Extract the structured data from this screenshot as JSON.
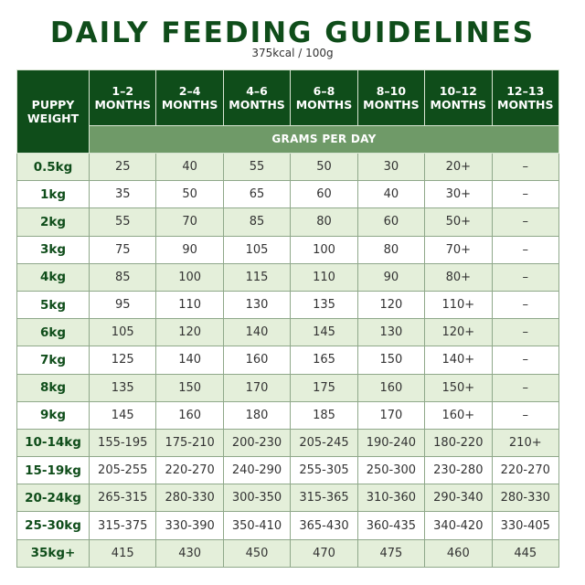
{
  "title": "DAILY FEEDING GUIDELINES",
  "subtitle": "375kcal / 100g",
  "colors": {
    "dark_green": "#0f4d1a",
    "mid_green": "#6f9a68",
    "light_row": "#e4efda"
  },
  "table": {
    "weight_header": [
      "PUPPY",
      "WEIGHT"
    ],
    "age_headers": [
      [
        "1–2",
        "MONTHS"
      ],
      [
        "2–4",
        "MONTHS"
      ],
      [
        "4–6",
        "MONTHS"
      ],
      [
        "6–8",
        "MONTHS"
      ],
      [
        "8–10",
        "MONTHS"
      ],
      [
        "10–12",
        "MONTHS"
      ],
      [
        "12–13",
        "MONTHS"
      ]
    ],
    "unit_header": "GRAMS PER DAY",
    "rows": [
      {
        "weight": "0.5kg",
        "values": [
          "25",
          "40",
          "55",
          "50",
          "30",
          "20+",
          "–"
        ]
      },
      {
        "weight": "1kg",
        "values": [
          "35",
          "50",
          "65",
          "60",
          "40",
          "30+",
          "–"
        ]
      },
      {
        "weight": "2kg",
        "values": [
          "55",
          "70",
          "85",
          "80",
          "60",
          "50+",
          "–"
        ]
      },
      {
        "weight": "3kg",
        "values": [
          "75",
          "90",
          "105",
          "100",
          "80",
          "70+",
          "–"
        ]
      },
      {
        "weight": "4kg",
        "values": [
          "85",
          "100",
          "115",
          "110",
          "90",
          "80+",
          "–"
        ]
      },
      {
        "weight": "5kg",
        "values": [
          "95",
          "110",
          "130",
          "135",
          "120",
          "110+",
          "–"
        ]
      },
      {
        "weight": "6kg",
        "values": [
          "105",
          "120",
          "140",
          "145",
          "130",
          "120+",
          "–"
        ]
      },
      {
        "weight": "7kg",
        "values": [
          "125",
          "140",
          "160",
          "165",
          "150",
          "140+",
          "–"
        ]
      },
      {
        "weight": "8kg",
        "values": [
          "135",
          "150",
          "170",
          "175",
          "160",
          "150+",
          "–"
        ]
      },
      {
        "weight": "9kg",
        "values": [
          "145",
          "160",
          "180",
          "185",
          "170",
          "160+",
          "–"
        ]
      },
      {
        "weight": "10-14kg",
        "values": [
          "155-195",
          "175-210",
          "200-230",
          "205-245",
          "190-240",
          "180-220",
          "210+"
        ]
      },
      {
        "weight": "15-19kg",
        "values": [
          "205-255",
          "220-270",
          "240-290",
          "255-305",
          "250-300",
          "230-280",
          "220-270"
        ]
      },
      {
        "weight": "20-24kg",
        "values": [
          "265-315",
          "280-330",
          "300-350",
          "315-365",
          "310-360",
          "290-340",
          "280-330"
        ]
      },
      {
        "weight": "25-30kg",
        "values": [
          "315-375",
          "330-390",
          "350-410",
          "365-430",
          "360-435",
          "340-420",
          "330-405"
        ]
      },
      {
        "weight": "35kg+",
        "values": [
          "415",
          "430",
          "450",
          "470",
          "475",
          "460",
          "445"
        ]
      }
    ]
  }
}
